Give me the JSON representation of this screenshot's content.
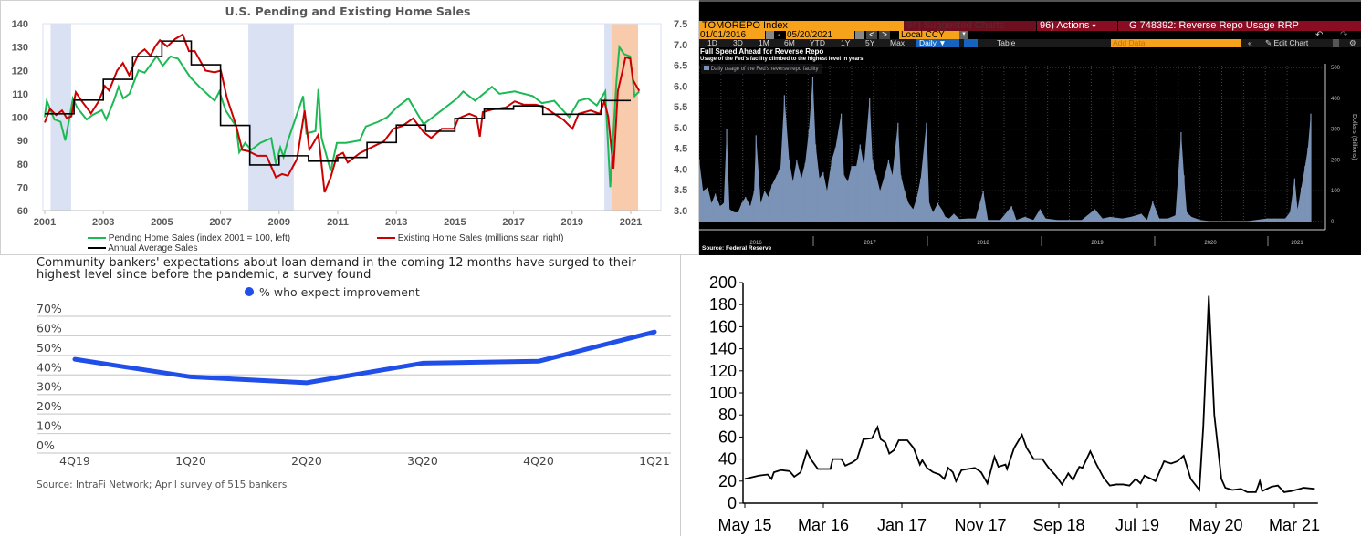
{
  "terminal": {
    "ticker": "TOMOREPO Index",
    "suggested_charts": "94) Suggested Charts",
    "actions": "96) Actions",
    "actions_arrow": "▾",
    "chart_title": "G 748392: Reverse Repo Usage RRP",
    "start_date": "01/01/2016",
    "date_sep": "-",
    "end_date": "05/20/2021",
    "currency": "Local CCY",
    "periods": [
      "1D",
      "3D",
      "1M",
      "6M",
      "YTD",
      "1Y",
      "5Y",
      "Max"
    ],
    "frequency": "Daily ▼",
    "table": "Table",
    "add_data_placeholder": "Add Data",
    "edit_chart": "✎ Edit Chart",
    "collapse": "«",
    "undo": "↶",
    "redo": "↷",
    "prev": "<",
    "next": ">",
    "dropdown": "▾"
  },
  "colors": {
    "pending": "#1db954",
    "existing": "#cc0000",
    "annual": "#000000",
    "recession": "#d9e1f2",
    "covid": "#f8cbad",
    "bloomberg_orange": "#f7a21b",
    "bloomberg_maroon": "#8b0d24",
    "bars": "#7b93b6",
    "survey_line": "#1f4ee8"
  },
  "chart_data": [
    {
      "type": "line",
      "title": "U.S. Pending and Existing Home Sales",
      "xlabel": "",
      "ylabel_left": "",
      "ylabel_right": "",
      "xlim": [
        2001,
        2022.4
      ],
      "ylim_left": [
        60,
        140
      ],
      "ylim_right": [
        3.0,
        7.5
      ],
      "x_ticks": [
        "2001",
        "2003",
        "2005",
        "2007",
        "2009",
        "2011",
        "2013",
        "2015",
        "2017",
        "2019",
        "2021"
      ],
      "y_ticks_left": [
        "60",
        "70",
        "80",
        "90",
        "100",
        "110",
        "120",
        "130",
        "140"
      ],
      "y_ticks_right": [
        "3.0",
        "3.5",
        "4.0",
        "4.5",
        "5.0",
        "5.5",
        "6.0",
        "6.5",
        "7.0",
        "7.5"
      ],
      "legend": "bottom",
      "shaded_periods": [
        {
          "kind": "recession",
          "from": 2001.2,
          "to": 2001.9
        },
        {
          "kind": "recession",
          "from": 2007.95,
          "to": 2009.5
        },
        {
          "kind": "recession",
          "from": 2020.1,
          "to": 2020.35
        },
        {
          "kind": "covid",
          "from": 2020.35,
          "to": 2021.25
        }
      ],
      "series": [
        {
          "name": "Pending Home Sales (index 2001 = 100, left)",
          "axis": "left",
          "x": [
            2001.0,
            2001.07,
            2001.33,
            2001.54,
            2001.7,
            2001.85,
            2001.96,
            2002.11,
            2002.43,
            2002.64,
            2002.95,
            2003.1,
            2003.36,
            2003.52,
            2003.68,
            2003.89,
            2004.2,
            2004.41,
            2004.82,
            2005.03,
            2005.29,
            2005.55,
            2005.97,
            2006.28,
            2006.8,
            2006.96,
            2007.17,
            2007.53,
            2007.64,
            2007.84,
            2008.05,
            2008.36,
            2008.73,
            2008.89,
            2009.04,
            2009.15,
            2009.3,
            2009.82,
            2009.93,
            2010.24,
            2010.34,
            2010.45,
            2010.76,
            2010.97,
            2011.28,
            2011.75,
            2011.96,
            2012.38,
            2012.69,
            2013.0,
            2013.41,
            2013.93,
            2014.35,
            2015.07,
            2015.28,
            2015.69,
            2016.26,
            2016.52,
            2017.04,
            2017.66,
            2017.97,
            2018.39,
            2018.9,
            2019.22,
            2019.53,
            2019.84,
            2020.13,
            2020.3,
            2020.51,
            2020.61,
            2020.77,
            2020.98,
            2021.13,
            2021.29
          ],
          "y": [
            100,
            107,
            99,
            98,
            90,
            100,
            108,
            104,
            99,
            101,
            103,
            99,
            107,
            113,
            108,
            110,
            120,
            119,
            126,
            122,
            126,
            125,
            117,
            113,
            107,
            111,
            103,
            96,
            85,
            89,
            86,
            89,
            91,
            80,
            87,
            83,
            90,
            109,
            93,
            94,
            112,
            91,
            77,
            89,
            89,
            90,
            96,
            98,
            100,
            104,
            108,
            97,
            101,
            108,
            111,
            107,
            113,
            110,
            111,
            109,
            106,
            107,
            100,
            107,
            108,
            105,
            111,
            70,
            115,
            130,
            127,
            126,
            109,
            111
          ]
        },
        {
          "name": "Existing Home Sales (millions saar, right)",
          "axis": "right",
          "x": [
            2001.0,
            2001.18,
            2001.39,
            2001.59,
            2001.75,
            2001.91,
            2002.06,
            2002.27,
            2002.58,
            2002.84,
            2003.05,
            2003.2,
            2003.47,
            2003.67,
            2003.88,
            2004.2,
            2004.41,
            2004.61,
            2004.77,
            2004.93,
            2005.18,
            2005.45,
            2005.71,
            2005.92,
            2006.12,
            2006.49,
            2006.8,
            2007.01,
            2007.22,
            2007.53,
            2007.74,
            2007.95,
            2008.26,
            2008.57,
            2008.89,
            2009.1,
            2009.3,
            2009.61,
            2009.87,
            2010.03,
            2010.34,
            2010.55,
            2010.76,
            2010.97,
            2011.18,
            2011.34,
            2011.75,
            2012.17,
            2012.58,
            2012.9,
            2013.21,
            2013.57,
            2013.93,
            2014.19,
            2014.55,
            2014.97,
            2015.12,
            2015.49,
            2015.74,
            2015.85,
            2015.95,
            2016.31,
            2016.73,
            2017.04,
            2017.35,
            2017.77,
            2018.08,
            2018.39,
            2018.7,
            2019.01,
            2019.22,
            2019.63,
            2019.94,
            2020.1,
            2020.23,
            2020.41,
            2020.56,
            2020.72,
            2020.82,
            2020.98,
            2021.08,
            2021.29
          ],
          "y": [
            5.12,
            5.45,
            5.3,
            5.41,
            5.23,
            5.27,
            5.85,
            5.63,
            5.34,
            5.63,
            6.0,
            5.89,
            6.37,
            6.55,
            6.26,
            6.77,
            6.88,
            6.73,
            6.95,
            7.1,
            6.95,
            7.13,
            7.24,
            6.84,
            6.84,
            6.37,
            6.33,
            6.37,
            5.71,
            5.05,
            4.46,
            4.43,
            4.32,
            4.32,
            3.8,
            3.88,
            3.84,
            4.24,
            5.41,
            4.46,
            4.83,
            3.44,
            3.8,
            4.32,
            4.39,
            4.16,
            4.38,
            4.53,
            4.67,
            4.97,
            5.04,
            5.22,
            4.89,
            4.75,
            4.97,
            4.97,
            5.22,
            5.33,
            5.26,
            4.78,
            5.37,
            5.44,
            5.48,
            5.63,
            5.55,
            5.55,
            5.48,
            5.33,
            5.19,
            4.97,
            5.33,
            5.41,
            5.33,
            5.63,
            5.26,
            4.01,
            5.88,
            6.36,
            6.69,
            6.66,
            6.14,
            5.88
          ]
        },
        {
          "name": "Annual Average Sales",
          "axis": "right",
          "style": "step",
          "x": [
            2001,
            2002,
            2003,
            2004,
            2005,
            2006,
            2007,
            2008,
            2009,
            2010,
            2011,
            2012,
            2013,
            2014,
            2015,
            2016,
            2017,
            2018,
            2019,
            2020
          ],
          "y": [
            5.33,
            5.66,
            6.16,
            6.71,
            7.08,
            6.51,
            5.05,
            4.1,
            4.32,
            4.19,
            4.28,
            4.64,
            5.06,
            4.91,
            5.22,
            5.44,
            5.52,
            5.32,
            5.32,
            5.65
          ]
        }
      ]
    },
    {
      "type": "bar",
      "title": "Full Speed Ahead for Reverse Repo",
      "subtitle": "Usage of the Fed's facility climbed to the highest level in years",
      "legend_label": "Daily usage of the Fed's reverse repo facility",
      "ylabel": "Dollars (Billions)",
      "ylim": [
        0,
        500
      ],
      "y_ticks": [
        "0",
        "100",
        "200",
        "300",
        "400",
        "500"
      ],
      "x_ticks": [
        "2016",
        "2017",
        "2018",
        "2019",
        "2020",
        "2021"
      ],
      "x_unit": "months since Jan 2016",
      "source": "Source: Federal Reserve",
      "x": [
        0,
        0.4,
        0.9,
        1.3,
        1.7,
        2.2,
        2.6,
        2.9,
        3.2,
        3.7,
        4.1,
        4.5,
        4.9,
        5.4,
        5.8,
        6,
        6.5,
        6.9,
        7.3,
        7.7,
        8.2,
        8.6,
        9,
        9.5,
        9.9,
        10.3,
        10.8,
        11.2,
        11.6,
        12,
        12.3,
        12.7,
        13.1,
        13.5,
        14,
        14.4,
        15,
        15.3,
        15.7,
        16.1,
        16.6,
        17,
        17.4,
        18,
        18.3,
        18.7,
        19.1,
        19.6,
        20,
        20.4,
        21,
        21.3,
        21.7,
        22.1,
        22.6,
        23,
        23.4,
        24,
        24.3,
        24.7,
        25.2,
        25.6,
        26,
        26.4,
        26.9,
        27.5,
        28.4,
        29.2,
        30,
        30.5,
        31.8,
        33,
        33.5,
        34.4,
        35.3,
        36,
        36.6,
        37.8,
        39.1,
        40.4,
        41.8,
        42.6,
        43.4,
        44.7,
        45.6,
        46.7,
        47.3,
        47.9,
        48.6,
        49.5,
        50.3,
        50.9,
        51.2,
        51.5,
        52,
        52.9,
        53.8,
        55.9,
        58,
        60,
        60.8,
        61.9,
        62.4,
        62.9,
        63.2,
        63.6,
        64,
        64.3,
        64.6
      ],
      "values": [
        200,
        100,
        110,
        60,
        90,
        50,
        60,
        300,
        40,
        30,
        30,
        60,
        80,
        50,
        100,
        280,
        60,
        100,
        80,
        120,
        150,
        180,
        410,
        200,
        130,
        200,
        140,
        190,
        300,
        470,
        250,
        140,
        160,
        100,
        200,
        240,
        350,
        150,
        130,
        180,
        180,
        250,
        180,
        400,
        200,
        150,
        100,
        150,
        200,
        150,
        320,
        150,
        100,
        60,
        40,
        80,
        140,
        320,
        60,
        30,
        60,
        40,
        15,
        10,
        25,
        8,
        10,
        10,
        100,
        5,
        5,
        50,
        5,
        15,
        5,
        40,
        10,
        5,
        5,
        5,
        40,
        10,
        15,
        10,
        15,
        25,
        5,
        65,
        10,
        10,
        20,
        290,
        150,
        30,
        15,
        5,
        2,
        2,
        2,
        10,
        10,
        10,
        30,
        140,
        40,
        110,
        180,
        240,
        350
      ]
    },
    {
      "type": "line",
      "title": "Community bankers' expectations about loan demand in the coming 12 months have surged to their highest level since before the pandemic, a survey found",
      "legend_label": "% who expect improvement",
      "categories": [
        "4Q19",
        "1Q20",
        "2Q20",
        "3Q20",
        "4Q20",
        "1Q21"
      ],
      "values": [
        48,
        39,
        36,
        46,
        47,
        62
      ],
      "ylim": [
        0,
        70
      ],
      "y_ticks": [
        "0%",
        "10%",
        "20%",
        "30%",
        "40%",
        "50%",
        "60%",
        "70%"
      ],
      "legend": "top-center",
      "source": "Source: IntraFi Network; April survey of 515 bankers"
    },
    {
      "type": "line",
      "xlabel": "",
      "ylabel": "",
      "ylim": [
        0,
        200
      ],
      "y_ticks": [
        "0",
        "20",
        "40",
        "60",
        "80",
        "100",
        "120",
        "140",
        "160",
        "180",
        "200"
      ],
      "x_ticks": [
        "May 15",
        "Mar 16",
        "Jan 17",
        "Nov 17",
        "Sep 18",
        "Jul 19",
        "May 20",
        "Mar 21"
      ],
      "x_unit": "months since May 2015",
      "x": [
        0,
        1.8,
        2.9,
        3.4,
        3.7,
        4.6,
        5.7,
        6.3,
        7.1,
        7.9,
        8.4,
        9.3,
        10.1,
        10.9,
        11.2,
        12.3,
        12.8,
        13.7,
        14.3,
        15.1,
        16.2,
        16.9,
        17.3,
        17.9,
        18.4,
        19,
        19.6,
        20.7,
        21.5,
        22.3,
        22.6,
        23.2,
        24,
        24.8,
        25.4,
        25.9,
        26.5,
        26.9,
        27.6,
        28.4,
        29.3,
        30.1,
        30.9,
        31.8,
        32.3,
        33.2,
        33.4,
        34.3,
        35.3,
        35.9,
        36.8,
        37.9,
        38.7,
        39.6,
        40.4,
        41.2,
        41.8,
        42.6,
        43,
        44,
        44.8,
        45.7,
        46.5,
        47.3,
        48.2,
        49,
        49.8,
        50.4,
        50.9,
        51.8,
        52.3,
        53.4,
        54.3,
        55.1,
        55.9,
        56.8,
        57.9,
        58.4,
        59.1,
        59.8,
        60.7,
        61.2,
        62.1,
        63.2,
        64,
        65.1,
        65.6,
        65.9,
        67.1,
        67.9,
        68.7,
        69.6,
        70.7,
        71.2,
        72.6
      ],
      "values": [
        22,
        25,
        26,
        22,
        28,
        30,
        29,
        24,
        28,
        47,
        40,
        31,
        31,
        31,
        40,
        40,
        34,
        37,
        40,
        58,
        59,
        69,
        58,
        55,
        45,
        48,
        57,
        57,
        50,
        35,
        39,
        32,
        28,
        26,
        22,
        32,
        28,
        20,
        30,
        31,
        32,
        28,
        18,
        42,
        33,
        35,
        31,
        50,
        62,
        50,
        40,
        40,
        32,
        25,
        17,
        27,
        21,
        33,
        32,
        47,
        35,
        23,
        16,
        17,
        17,
        16,
        22,
        18,
        25,
        22,
        20,
        38,
        36,
        38,
        43,
        22,
        12,
        70,
        188,
        80,
        22,
        14,
        12,
        13,
        10,
        10,
        20,
        11,
        15,
        16,
        10,
        11,
        13,
        14,
        13
      ]
    }
  ]
}
